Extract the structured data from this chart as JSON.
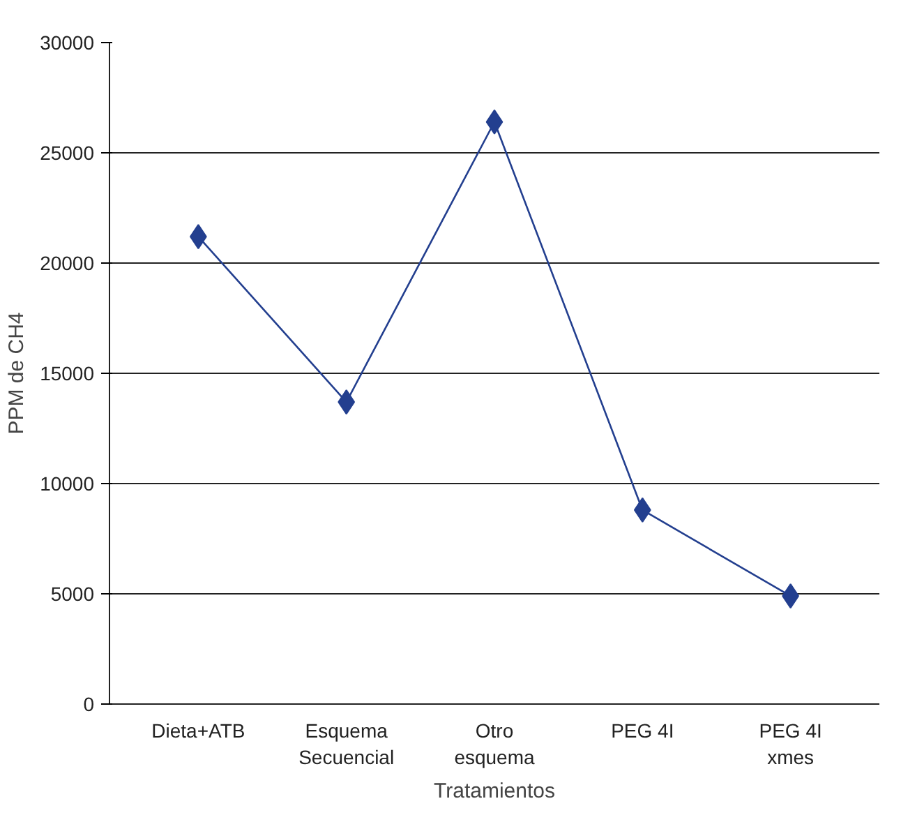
{
  "chart_data": {
    "type": "line",
    "xlabel": "Tratamientos",
    "ylabel": "PPM de CH4",
    "categories": [
      "Dieta+ATB",
      "Esquema\nSecuencial",
      "Otro\nesquema",
      "PEG 4I",
      "PEG 4I\nxmes"
    ],
    "series": [
      {
        "color": "#233f8f",
        "values": [
          21200,
          13700,
          26400,
          8800,
          4900
        ]
      }
    ],
    "ylim": [
      0,
      30000
    ],
    "yticks": [
      0,
      5000,
      10000,
      15000,
      20000,
      25000,
      30000
    ],
    "grid": "y",
    "marker": "diamond",
    "line_style": "solid"
  }
}
